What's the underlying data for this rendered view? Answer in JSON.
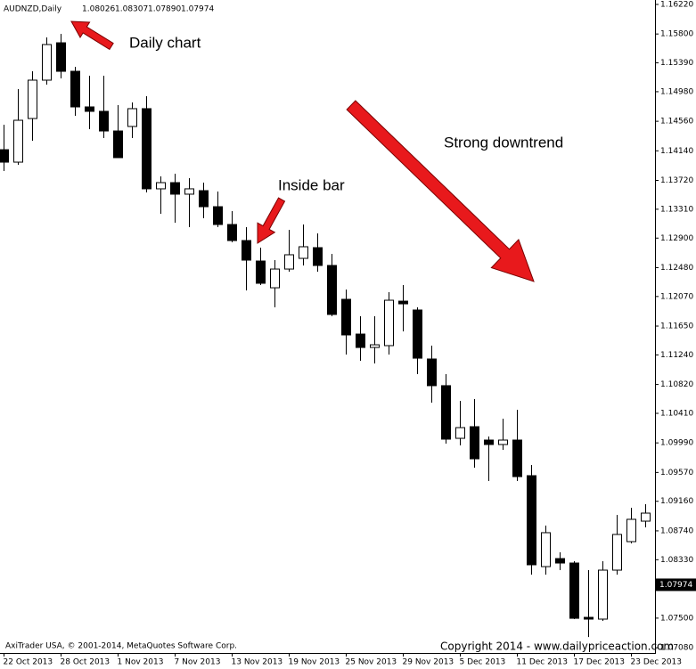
{
  "chart_data": {
    "type": "candlestick",
    "symbol": "AUDNZD,Daily",
    "header_values": [
      1.08026,
      1.08307,
      1.0789,
      1.07974
    ],
    "header_labels": [
      "1.08026",
      "1.08307",
      "1.07890",
      "1.07974"
    ],
    "annotations": [
      "Daily chart",
      "Inside bar",
      "Strong downtrend"
    ],
    "footer_left": "AxiTrader USA, © 2001-2014, MetaQuotes Software Corp.",
    "footer_right": "Copyright 2014 - www.dailypriceaction.com",
    "current_price": 1.07974,
    "up_color": "#ffffff",
    "down_color": "#000000",
    "categories": [
      "22 Oct 2013",
      null,
      null,
      null,
      "28 Oct 2013",
      null,
      null,
      null,
      "1 Nov 2013",
      null,
      null,
      null,
      "7 Nov 2013",
      null,
      null,
      null,
      "13 Nov 2013",
      null,
      null,
      null,
      "19 Nov 2013",
      null,
      null,
      null,
      "25 Nov 2013",
      null,
      null,
      null,
      "29 Nov 2013",
      null,
      null,
      null,
      "5 Dec 2013",
      null,
      null,
      null,
      "11 Dec 2013",
      null,
      null,
      null,
      "17 Dec 2013",
      null,
      null,
      null,
      "23 Dec 2013",
      null
    ],
    "open": [
      1.14156,
      1.13979,
      1.14599,
      1.15144,
      1.15675,
      1.1527,
      1.14764,
      1.14701,
      1.14422,
      1.14486,
      1.14739,
      1.136,
      1.13688,
      1.13524,
      1.13574,
      1.13346,
      1.13093,
      1.12865,
      1.12574,
      1.12194,
      1.1246,
      1.12612,
      1.12764,
      1.12511,
      1.1203,
      1.11536,
      1.11346,
      1.11372,
      1.12004,
      1.11878,
      1.11182,
      1.10803,
      1.10055,
      1.1022,
      1.1003,
      1.09967,
      1.1003,
      1.09524,
      1.08232,
      1.08346,
      1.08283,
      1.07511,
      1.07486,
      1.08182,
      1.08587,
      1.08878
    ],
    "high": [
      1.14511,
      1.15017,
      1.1527,
      1.15751,
      1.15802,
      1.15334,
      1.15207,
      1.15207,
      1.14789,
      1.14827,
      1.14916,
      1.13777,
      1.13815,
      1.13752,
      1.13688,
      1.13561,
      1.13283,
      1.13055,
      1.12764,
      1.12587,
      1.13017,
      1.13093,
      1.12967,
      1.12676,
      1.12169,
      1.11789,
      1.11789,
      1.12131,
      1.12232,
      1.11916,
      1.11372,
      1.10967,
      1.10587,
      1.10612,
      1.10081,
      1.10334,
      1.1046,
      1.09675,
      1.08815,
      1.08435,
      1.08308,
      1.08182,
      1.08308,
      1.08967,
      1.09068,
      1.09119
    ],
    "low": [
      1.13853,
      1.13941,
      1.14283,
      1.1508,
      1.15169,
      1.14637,
      1.14448,
      1.14321,
      1.14043,
      1.14321,
      1.13549,
      1.13245,
      1.13118,
      1.13055,
      1.13182,
      1.13055,
      1.1284,
      1.12156,
      1.12232,
      1.11916,
      1.12422,
      1.12511,
      1.12422,
      1.11789,
      1.11245,
      1.11156,
      1.11119,
      1.11245,
      1.11574,
      1.10967,
      1.10561,
      1.0998,
      1.09954,
      1.09638,
      1.09448,
      1.09891,
      1.09448,
      1.08118,
      1.08118,
      1.08182,
      1.07486,
      1.07232,
      1.0746,
      1.08118,
      1.08562,
      1.08789
    ],
    "close": [
      1.13979,
      1.14574,
      1.15144,
      1.1565,
      1.1527,
      1.14764,
      1.14701,
      1.14422,
      1.14043,
      1.14739,
      1.136,
      1.13688,
      1.13524,
      1.136,
      1.13346,
      1.13093,
      1.12865,
      1.12587,
      1.12258,
      1.1246,
      1.12663,
      1.12777,
      1.12511,
      1.11815,
      1.11524,
      1.11346,
      1.11384,
      1.12017,
      1.11966,
      1.11194,
      1.10803,
      1.10043,
      1.10207,
      1.09764,
      1.09967,
      1.1003,
      1.09511,
      1.08258,
      1.08714,
      1.08283,
      1.07498,
      1.07486,
      1.08182,
      1.08689,
      1.08904,
      1.08992
    ],
    "ylim": [
      1.07005,
      1.16283
    ],
    "yticks": [
      {
        "value": 1.1622,
        "label": "1.16220"
      },
      {
        "value": 1.158,
        "label": "1.15800"
      },
      {
        "value": 1.1539,
        "label": "1.15390"
      },
      {
        "value": 1.1498,
        "label": "1.14980"
      },
      {
        "value": 1.1456,
        "label": "1.14560"
      },
      {
        "value": 1.1414,
        "label": "1.14140"
      },
      {
        "value": 1.1372,
        "label": "1.13720"
      },
      {
        "value": 1.1331,
        "label": "1.13310"
      },
      {
        "value": 1.129,
        "label": "1.12900"
      },
      {
        "value": 1.1248,
        "label": "1.12480"
      },
      {
        "value": 1.1207,
        "label": "1.12070"
      },
      {
        "value": 1.1165,
        "label": "1.11650"
      },
      {
        "value": 1.1124,
        "label": "1.11240"
      },
      {
        "value": 1.1082,
        "label": "1.10820"
      },
      {
        "value": 1.1041,
        "label": "1.10410"
      },
      {
        "value": 1.0999,
        "label": "1.09990"
      },
      {
        "value": 1.0957,
        "label": "1.09570"
      },
      {
        "value": 1.0916,
        "label": "1.09160"
      },
      {
        "value": 1.0874,
        "label": "1.08740"
      },
      {
        "value": 1.0833,
        "label": "1.08330"
      },
      {
        "value": 1.075,
        "label": "1.07500"
      },
      {
        "value": 1.0708,
        "label": "1.07080"
      }
    ]
  }
}
